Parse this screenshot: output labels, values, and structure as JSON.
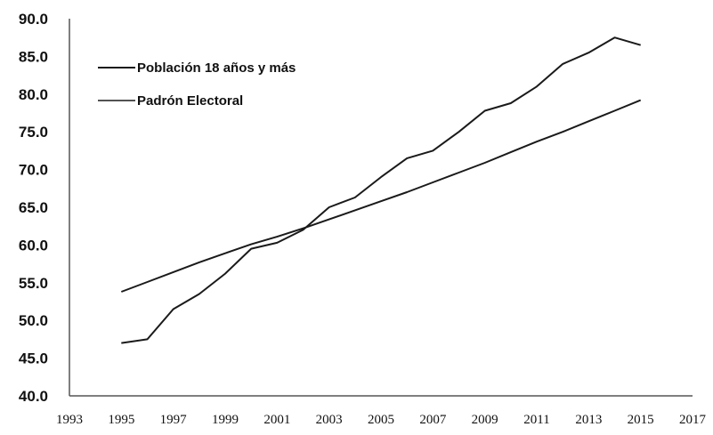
{
  "chart_data": {
    "type": "line",
    "title": "",
    "xlabel": "",
    "ylabel": "",
    "xlim": [
      1993,
      2017
    ],
    "ylim": [
      40,
      90
    ],
    "x_ticks": [
      "1993",
      "1995",
      "1997",
      "1999",
      "2001",
      "2003",
      "2005",
      "2007",
      "2009",
      "2011",
      "2013",
      "2015",
      "2017"
    ],
    "y_ticks": [
      "40.0",
      "45.0",
      "50.0",
      "55.0",
      "60.0",
      "65.0",
      "70.0",
      "75.0",
      "80.0",
      "85.0",
      "90.0"
    ],
    "grid": false,
    "legend_position": "top-left",
    "series": [
      {
        "name": "Población 18 años y más",
        "color": "#1a1a1a",
        "x": [
          1995,
          1996,
          1997,
          1998,
          1999,
          2000,
          2001,
          2002,
          2003,
          2004,
          2005,
          2006,
          2007,
          2008,
          2009,
          2010,
          2011,
          2012,
          2013,
          2014,
          2015
        ],
        "y": [
          53.8,
          55.1,
          56.4,
          57.7,
          58.9,
          60.1,
          61.1,
          62.2,
          63.4,
          64.6,
          65.8,
          67.0,
          68.3,
          69.6,
          70.9,
          72.3,
          73.7,
          75.0,
          76.4,
          77.8,
          79.2
        ]
      },
      {
        "name": "Padrón Electoral",
        "color": "#1a1a1a",
        "x": [
          1995,
          1996,
          1997,
          1998,
          1999,
          2000,
          2001,
          2002,
          2003,
          2004,
          2005,
          2006,
          2007,
          2008,
          2009,
          2010,
          2011,
          2012,
          2013,
          2014,
          2015
        ],
        "y": [
          47.0,
          47.5,
          51.5,
          53.5,
          56.2,
          59.5,
          60.3,
          62.0,
          65.0,
          66.3,
          69.0,
          71.5,
          72.5,
          75.0,
          77.8,
          78.8,
          81.0,
          84.0,
          85.5,
          87.5,
          86.5
        ]
      }
    ]
  }
}
